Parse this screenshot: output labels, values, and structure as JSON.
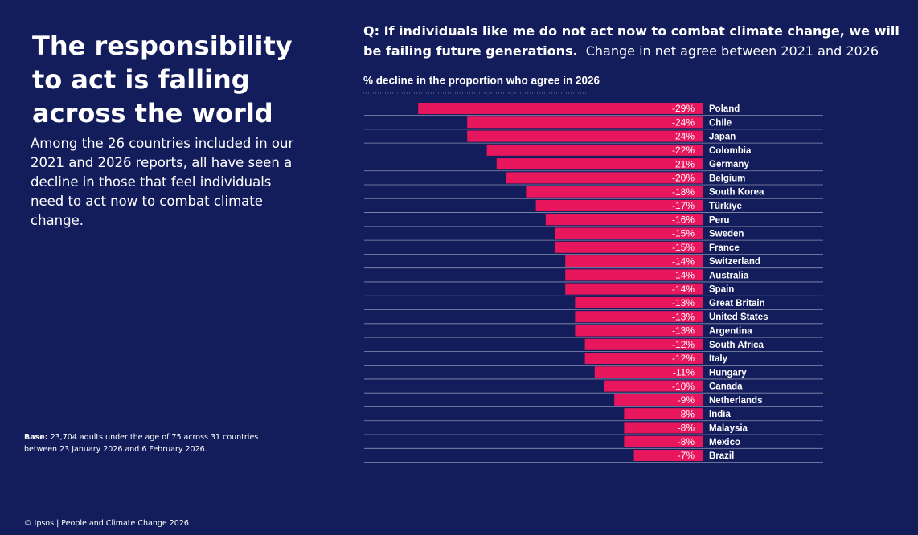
{
  "slide": {
    "title": "The responsibility to act is falling across the world",
    "body": "Among the 26 countries included in our 2021 and 2026 reports, all have seen a decline in those that feel individuals need to act now to combat climate change.",
    "base_label": "Base:",
    "base_text": "23,704 adults under the age of 75 across 31 countries between 23 January 2026 and 6 February 2026.",
    "footer": "© Ipsos | People and Climate Change 2026"
  },
  "chart_data": {
    "type": "bar",
    "orientation": "horizontal",
    "question": "Q: If individuals like me do not act now to combat climate change, we will be failing future generations.",
    "title": "Change in net agree between 2021 and 2026",
    "subtitle": "% decline in the proportion  who agree in 2026",
    "color": "#e8175d",
    "categories": [
      "Poland",
      "Chile",
      "Japan",
      "Colombia",
      "Germany",
      "Belgium",
      "South Korea",
      "Türkiye",
      "Peru",
      "Sweden",
      "France",
      "Switzerland",
      "Australia",
      "Spain",
      "Great Britain",
      "United States",
      "Argentina",
      "South Africa",
      "Italy",
      "Hungary",
      "Canada",
      "Netherlands",
      "India",
      "Malaysia",
      "Mexico",
      "Brazil"
    ],
    "values": [
      -29,
      -24,
      -24,
      -22,
      -21,
      -20,
      -18,
      -17,
      -16,
      -15,
      -15,
      -14,
      -14,
      -14,
      -13,
      -13,
      -13,
      -12,
      -12,
      -11,
      -10,
      -9,
      -8,
      -8,
      -8,
      -7
    ],
    "value_labels": [
      "-29%",
      "-24%",
      "-24%",
      "-22%",
      "-21%",
      "-20%",
      "-18%",
      "-17%",
      "-16%",
      "-15%",
      "-15%",
      "-14%",
      "-14%",
      "-14%",
      "-13%",
      "-13%",
      "-13%",
      "-12%",
      "-12%",
      "-11%",
      "-10%",
      "-9%",
      "-8%",
      "-8%",
      "-8%",
      "-7%"
    ]
  }
}
